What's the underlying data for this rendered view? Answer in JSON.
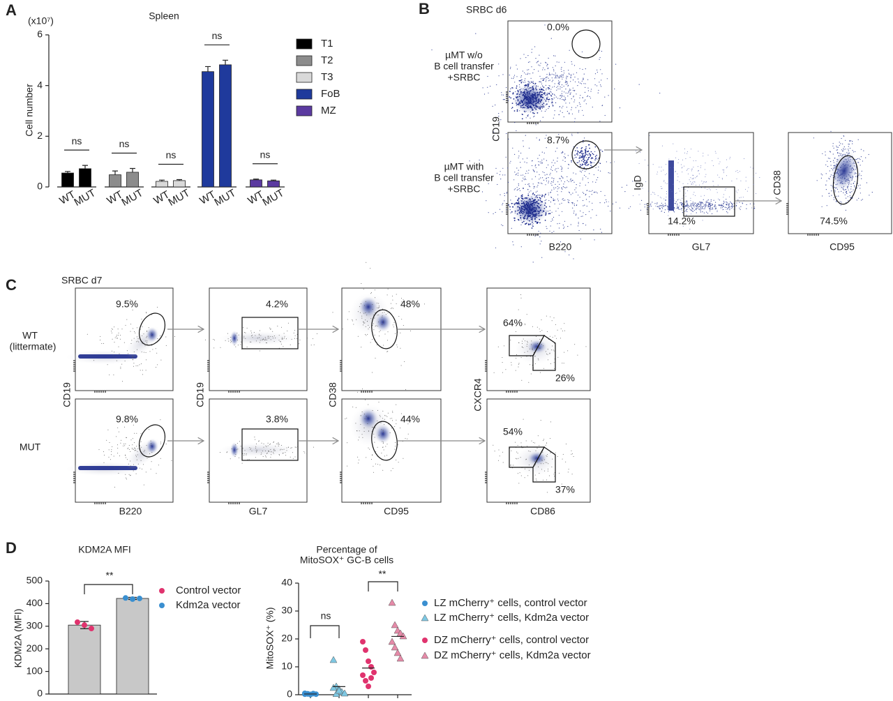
{
  "panel_labels": [
    "A",
    "B",
    "C",
    "D"
  ],
  "chart_data": [
    {
      "type": "bar",
      "title": "Spleen",
      "y_multiplier": "(x10⁷)",
      "ylabel": "Cell number",
      "categories": [
        "T1",
        "T2",
        "T3",
        "FoB",
        "MZ"
      ],
      "colors": [
        "#000000",
        "#8c8c8c",
        "#d9d9d9",
        "#1f3a9c",
        "#5b3aa0"
      ],
      "series": [
        {
          "name": "WT",
          "color": "#111111",
          "values": [
            0.55,
            0.48,
            0.22,
            4.55,
            0.28
          ],
          "errors": [
            0.06,
            0.15,
            0.05,
            0.2,
            0.03
          ]
        },
        {
          "name": "MUT",
          "color": "#e0542a",
          "values": [
            0.72,
            0.58,
            0.25,
            4.82,
            0.24
          ],
          "errors": [
            0.13,
            0.15,
            0.04,
            0.18,
            0.03
          ]
        }
      ],
      "annotations": [
        "ns",
        "ns",
        "ns",
        "ns",
        "ns"
      ],
      "ylim": [
        0,
        6
      ],
      "yticks": [
        0,
        2,
        4,
        6
      ]
    },
    {
      "type": "bar",
      "title": "KDM2A MFI",
      "ylabel": "KDM2A (MFI)",
      "categories": [
        "Control vector",
        "Kdm2a vector"
      ],
      "values": [
        305,
        423
      ],
      "errors": [
        16,
        5
      ],
      "points": [
        [
          318,
          305,
          290
        ],
        [
          425,
          420,
          423
        ]
      ],
      "point_colors": [
        "#e0336e",
        "#3a8fd0"
      ],
      "color": "#c8c8c8",
      "annotation": "**",
      "ylim": [
        0,
        500
      ],
      "yticks": [
        0,
        100,
        200,
        300,
        400,
        500
      ]
    },
    {
      "type": "scatter",
      "title": [
        "Percentage of",
        "MitoSOX⁺ GC-B cells"
      ],
      "ylabel": "MitoSOX⁺ (%)",
      "series": [
        {
          "name": "LZ mCherry⁺ cells, control vector",
          "color": "#3a8fd0",
          "marker": "circle",
          "values": [
            0.2,
            0.3,
            0.1,
            0.4,
            0.2,
            0.5,
            0.3,
            0.1
          ]
        },
        {
          "name": "LZ mCherry⁺ cells, Kdm2a vector",
          "color": "#7ec8e3",
          "marker": "triangle",
          "values": [
            12.5,
            3,
            2,
            1,
            0.5,
            2.5,
            0.3,
            1.5
          ]
        },
        {
          "name": "DZ mCherry⁺ cells, control vector",
          "color": "#e0336e",
          "marker": "circle",
          "values": [
            19,
            16,
            12,
            10,
            8,
            7,
            5,
            3,
            6
          ]
        },
        {
          "name": "DZ mCherry⁺ cells, Kdm2a vector",
          "color": "#e58aa8",
          "marker": "triangle",
          "values": [
            33,
            25,
            23,
            22,
            21,
            19,
            17,
            15,
            13
          ]
        }
      ],
      "annotations": [
        "ns",
        "**"
      ],
      "ylim": [
        0,
        40
      ],
      "yticks": [
        0,
        10,
        20,
        30,
        40
      ]
    }
  ],
  "flow_b": {
    "title": "SRBC d6",
    "row_labels": [
      [
        "µMT w/o",
        "B cell transfer",
        "+SRBC"
      ],
      [
        "µMT with",
        "B cell transfer",
        "+SRBC"
      ]
    ],
    "gates": [
      "0.0%",
      "8.7%",
      "14.2%",
      "74.5%"
    ],
    "axis_labels": {
      "y": [
        "CD19",
        "IgD",
        "CD38"
      ],
      "x": [
        "B220",
        "GL7",
        "CD95"
      ]
    }
  },
  "flow_c": {
    "title": "SRBC d7",
    "row_labels": [
      [
        "WT",
        "(littermate)"
      ],
      [
        "MUT"
      ]
    ],
    "gates": [
      [
        "9.5%",
        "4.2%",
        "48%",
        "64%",
        "26%"
      ],
      [
        "9.8%",
        "3.8%",
        "44%",
        "54%",
        "37%"
      ]
    ],
    "axis_labels": {
      "y": [
        "CD19",
        "CD19",
        "CD38",
        "CXCR4"
      ],
      "x": [
        "B220",
        "GL7",
        "CD95",
        "CD86"
      ]
    }
  }
}
